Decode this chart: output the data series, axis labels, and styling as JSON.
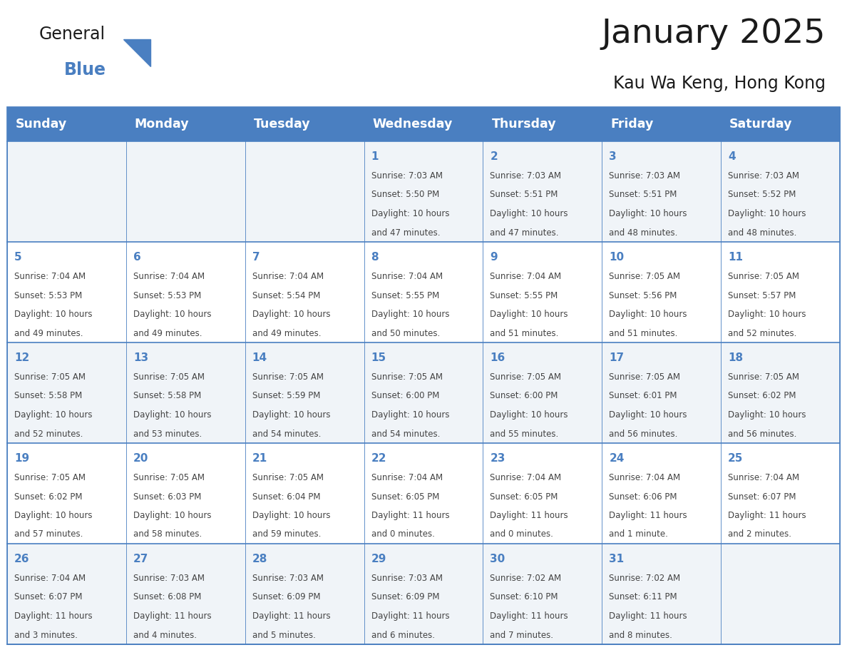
{
  "title": "January 2025",
  "subtitle": "Kau Wa Keng, Hong Kong",
  "days_of_week": [
    "Sunday",
    "Monday",
    "Tuesday",
    "Wednesday",
    "Thursday",
    "Friday",
    "Saturday"
  ],
  "header_bg": "#4a7fc1",
  "header_text": "#FFFFFF",
  "bg_color": "#FFFFFF",
  "row_alt_bg": "#f0f4f8",
  "row_normal_bg": "#FFFFFF",
  "border_color": "#4a7fc1",
  "day_number_color": "#4a7fc1",
  "text_color": "#444444",
  "title_color": "#1a1a1a",
  "logo_general_color": "#1a1a1a",
  "logo_blue_color": "#4a7fc1",
  "logo_triangle_color": "#4a7fc1",
  "calendar_data": [
    [
      null,
      null,
      null,
      {
        "day": "1",
        "sunrise": "7:03 AM",
        "sunset": "5:50 PM",
        "daylight": "10 hours",
        "daylight2": "and 47 minutes."
      },
      {
        "day": "2",
        "sunrise": "7:03 AM",
        "sunset": "5:51 PM",
        "daylight": "10 hours",
        "daylight2": "and 47 minutes."
      },
      {
        "day": "3",
        "sunrise": "7:03 AM",
        "sunset": "5:51 PM",
        "daylight": "10 hours",
        "daylight2": "and 48 minutes."
      },
      {
        "day": "4",
        "sunrise": "7:03 AM",
        "sunset": "5:52 PM",
        "daylight": "10 hours",
        "daylight2": "and 48 minutes."
      }
    ],
    [
      {
        "day": "5",
        "sunrise": "7:04 AM",
        "sunset": "5:53 PM",
        "daylight": "10 hours",
        "daylight2": "and 49 minutes."
      },
      {
        "day": "6",
        "sunrise": "7:04 AM",
        "sunset": "5:53 PM",
        "daylight": "10 hours",
        "daylight2": "and 49 minutes."
      },
      {
        "day": "7",
        "sunrise": "7:04 AM",
        "sunset": "5:54 PM",
        "daylight": "10 hours",
        "daylight2": "and 49 minutes."
      },
      {
        "day": "8",
        "sunrise": "7:04 AM",
        "sunset": "5:55 PM",
        "daylight": "10 hours",
        "daylight2": "and 50 minutes."
      },
      {
        "day": "9",
        "sunrise": "7:04 AM",
        "sunset": "5:55 PM",
        "daylight": "10 hours",
        "daylight2": "and 51 minutes."
      },
      {
        "day": "10",
        "sunrise": "7:05 AM",
        "sunset": "5:56 PM",
        "daylight": "10 hours",
        "daylight2": "and 51 minutes."
      },
      {
        "day": "11",
        "sunrise": "7:05 AM",
        "sunset": "5:57 PM",
        "daylight": "10 hours",
        "daylight2": "and 52 minutes."
      }
    ],
    [
      {
        "day": "12",
        "sunrise": "7:05 AM",
        "sunset": "5:58 PM",
        "daylight": "10 hours",
        "daylight2": "and 52 minutes."
      },
      {
        "day": "13",
        "sunrise": "7:05 AM",
        "sunset": "5:58 PM",
        "daylight": "10 hours",
        "daylight2": "and 53 minutes."
      },
      {
        "day": "14",
        "sunrise": "7:05 AM",
        "sunset": "5:59 PM",
        "daylight": "10 hours",
        "daylight2": "and 54 minutes."
      },
      {
        "day": "15",
        "sunrise": "7:05 AM",
        "sunset": "6:00 PM",
        "daylight": "10 hours",
        "daylight2": "and 54 minutes."
      },
      {
        "day": "16",
        "sunrise": "7:05 AM",
        "sunset": "6:00 PM",
        "daylight": "10 hours",
        "daylight2": "and 55 minutes."
      },
      {
        "day": "17",
        "sunrise": "7:05 AM",
        "sunset": "6:01 PM",
        "daylight": "10 hours",
        "daylight2": "and 56 minutes."
      },
      {
        "day": "18",
        "sunrise": "7:05 AM",
        "sunset": "6:02 PM",
        "daylight": "10 hours",
        "daylight2": "and 56 minutes."
      }
    ],
    [
      {
        "day": "19",
        "sunrise": "7:05 AM",
        "sunset": "6:02 PM",
        "daylight": "10 hours",
        "daylight2": "and 57 minutes."
      },
      {
        "day": "20",
        "sunrise": "7:05 AM",
        "sunset": "6:03 PM",
        "daylight": "10 hours",
        "daylight2": "and 58 minutes."
      },
      {
        "day": "21",
        "sunrise": "7:05 AM",
        "sunset": "6:04 PM",
        "daylight": "10 hours",
        "daylight2": "and 59 minutes."
      },
      {
        "day": "22",
        "sunrise": "7:04 AM",
        "sunset": "6:05 PM",
        "daylight": "11 hours",
        "daylight2": "and 0 minutes."
      },
      {
        "day": "23",
        "sunrise": "7:04 AM",
        "sunset": "6:05 PM",
        "daylight": "11 hours",
        "daylight2": "and 0 minutes."
      },
      {
        "day": "24",
        "sunrise": "7:04 AM",
        "sunset": "6:06 PM",
        "daylight": "11 hours",
        "daylight2": "and 1 minute."
      },
      {
        "day": "25",
        "sunrise": "7:04 AM",
        "sunset": "6:07 PM",
        "daylight": "11 hours",
        "daylight2": "and 2 minutes."
      }
    ],
    [
      {
        "day": "26",
        "sunrise": "7:04 AM",
        "sunset": "6:07 PM",
        "daylight": "11 hours",
        "daylight2": "and 3 minutes."
      },
      {
        "day": "27",
        "sunrise": "7:03 AM",
        "sunset": "6:08 PM",
        "daylight": "11 hours",
        "daylight2": "and 4 minutes."
      },
      {
        "day": "28",
        "sunrise": "7:03 AM",
        "sunset": "6:09 PM",
        "daylight": "11 hours",
        "daylight2": "and 5 minutes."
      },
      {
        "day": "29",
        "sunrise": "7:03 AM",
        "sunset": "6:09 PM",
        "daylight": "11 hours",
        "daylight2": "and 6 minutes."
      },
      {
        "day": "30",
        "sunrise": "7:02 AM",
        "sunset": "6:10 PM",
        "daylight": "11 hours",
        "daylight2": "and 7 minutes."
      },
      {
        "day": "31",
        "sunrise": "7:02 AM",
        "sunset": "6:11 PM",
        "daylight": "11 hours",
        "daylight2": "and 8 minutes."
      },
      null
    ]
  ]
}
